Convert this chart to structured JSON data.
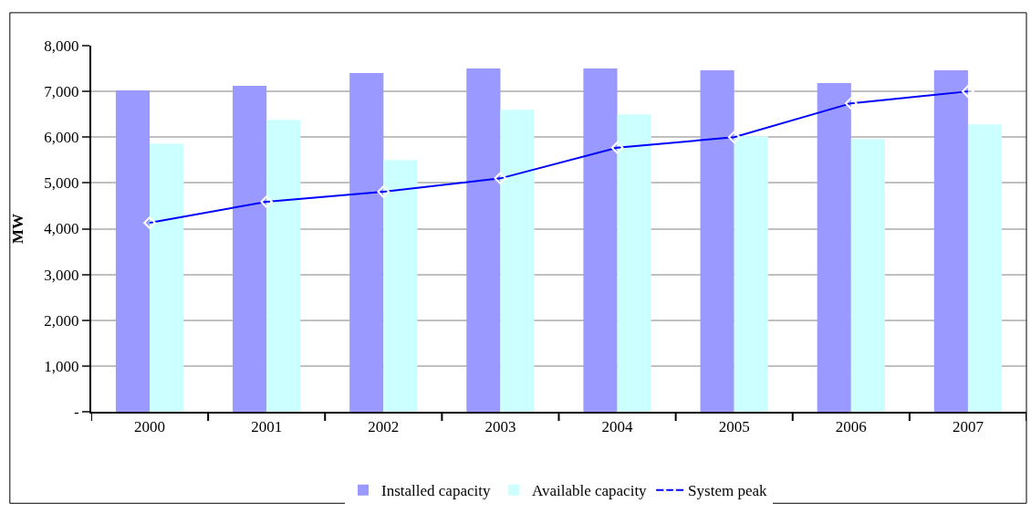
{
  "chart_data": {
    "type": "bar",
    "ylabel": "MW",
    "categories": [
      "2000",
      "2001",
      "2002",
      "2003",
      "2004",
      "2005",
      "2006",
      "2007"
    ],
    "series": [
      {
        "name": "Installed capacity",
        "color": "#9999ff",
        "values": [
          7020,
          7120,
          7400,
          7500,
          7500,
          7460,
          7180,
          7460
        ]
      },
      {
        "name": "Available capacity",
        "color": "#ccffff",
        "values": [
          5860,
          6380,
          5500,
          6600,
          6500,
          6020,
          5960,
          6280
        ]
      },
      {
        "name": "System peak",
        "type": "line",
        "color": "#0000ff",
        "marker": "diamond",
        "values": [
          4130,
          4590,
          4810,
          5100,
          5770,
          6000,
          6740,
          7000
        ]
      }
    ],
    "ylim": [
      0,
      8000
    ],
    "yticks": [
      {
        "value": 0,
        "label": "-"
      },
      {
        "value": 1000,
        "label": "1,000"
      },
      {
        "value": 2000,
        "label": "2,000"
      },
      {
        "value": 3000,
        "label": "3,000"
      },
      {
        "value": 4000,
        "label": "4,000"
      },
      {
        "value": 5000,
        "label": "5,000"
      },
      {
        "value": 6000,
        "label": "6,000"
      },
      {
        "value": 7000,
        "label": "7,000"
      },
      {
        "value": 8000,
        "label": "8,000"
      }
    ],
    "grid": "y",
    "legend": "bottom"
  }
}
